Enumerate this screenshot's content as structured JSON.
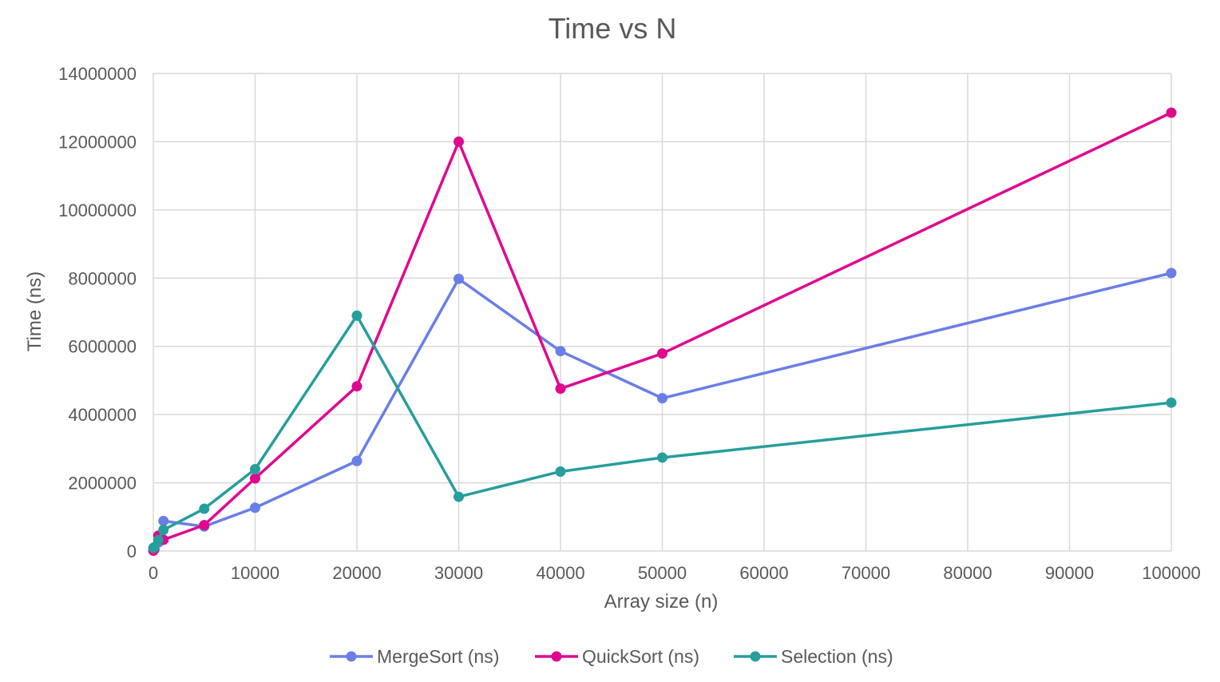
{
  "chart_data": {
    "type": "line",
    "title": "Time vs N",
    "xlabel": "Array size (n)",
    "ylabel": "Time (ns)",
    "xlim": [
      0,
      100000
    ],
    "ylim": [
      0,
      14000000
    ],
    "x_ticks": [
      0,
      10000,
      20000,
      30000,
      40000,
      50000,
      60000,
      70000,
      80000,
      90000,
      100000
    ],
    "y_ticks": [
      0,
      2000000,
      4000000,
      6000000,
      8000000,
      10000000,
      12000000,
      14000000
    ],
    "grid": true,
    "legend_position": "bottom",
    "x": [
      10,
      100,
      500,
      1000,
      5000,
      10000,
      20000,
      30000,
      40000,
      50000,
      100000
    ],
    "series": [
      {
        "name": "MergeSort (ns)",
        "color": "#6a7ee8",
        "values": [
          20000,
          60000,
          250000,
          880000,
          720000,
          1270000,
          2640000,
          7980000,
          5860000,
          4480000,
          8150000
        ]
      },
      {
        "name": "QuickSort (ns)",
        "color": "#e0088f",
        "values": [
          10000,
          50000,
          450000,
          330000,
          760000,
          2130000,
          4830000,
          12000000,
          4760000,
          5790000,
          12850000
        ]
      },
      {
        "name": "Selection (ns)",
        "color": "#269e9c",
        "values": [
          90000,
          110000,
          320000,
          620000,
          1240000,
          2400000,
          6900000,
          1590000,
          2330000,
          2740000,
          4350000
        ]
      }
    ]
  }
}
